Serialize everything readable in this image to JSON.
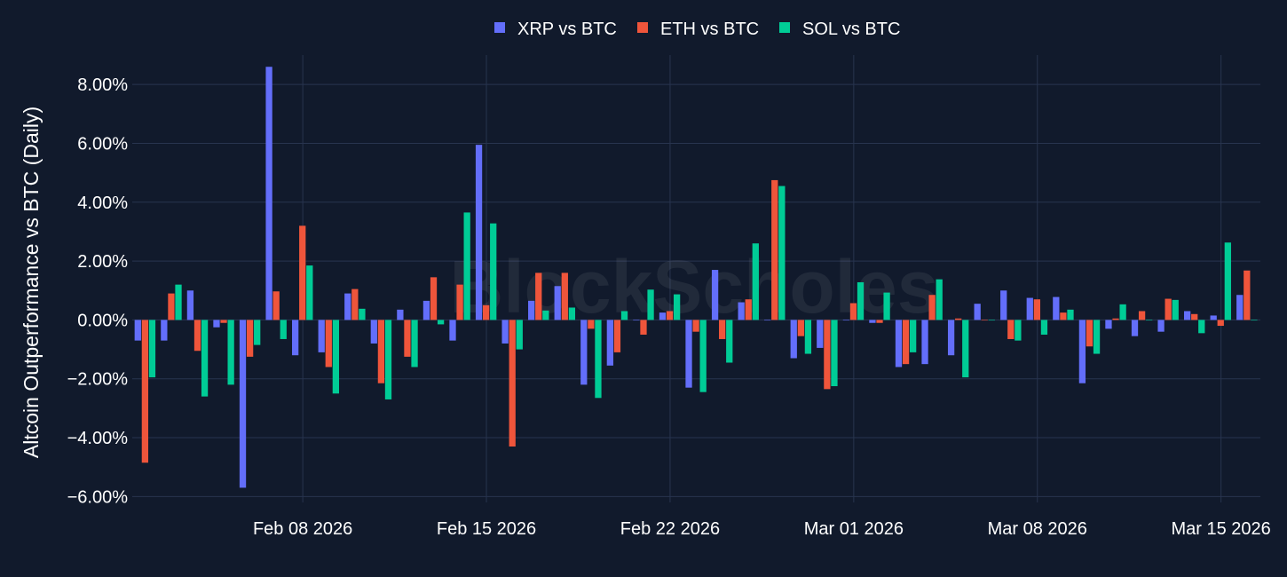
{
  "watermark": "BlockScholes",
  "chart_data": {
    "type": "bar",
    "ylabel": "Altcoin Outperformance vs BTC (Daily)",
    "ylim": [
      -6.2,
      9.0
    ],
    "yticks": [
      -6,
      -4,
      -2,
      0,
      2,
      4,
      6,
      8
    ],
    "ytick_labels": [
      "−6.00%",
      "−4.00%",
      "−2.00%",
      "0.00%",
      "2.00%",
      "4.00%",
      "6.00%",
      "8.00%"
    ],
    "x_start": "2026-02-02",
    "x_end": "2026-03-16",
    "xticks": [
      "2026-02-08",
      "2026-02-15",
      "2026-02-22",
      "2026-03-01",
      "2026-03-08",
      "2026-03-15"
    ],
    "xtick_labels": [
      "Feb 08 2026",
      "Feb 15 2026",
      "Feb 22 2026",
      "Mar 01 2026",
      "Mar 08 2026",
      "Mar 15 2026"
    ],
    "legend_position": "top-center",
    "grid": true,
    "dates": [
      "2026-02-02",
      "2026-02-03",
      "2026-02-04",
      "2026-02-05",
      "2026-02-06",
      "2026-02-07",
      "2026-02-08",
      "2026-02-09",
      "2026-02-10",
      "2026-02-11",
      "2026-02-12",
      "2026-02-13",
      "2026-02-14",
      "2026-02-15",
      "2026-02-16",
      "2026-02-17",
      "2026-02-18",
      "2026-02-19",
      "2026-02-20",
      "2026-02-21",
      "2026-02-22",
      "2026-02-23",
      "2026-02-24",
      "2026-02-25",
      "2026-02-26",
      "2026-02-27",
      "2026-02-28",
      "2026-03-01",
      "2026-03-02",
      "2026-03-03",
      "2026-03-04",
      "2026-03-05",
      "2026-03-06",
      "2026-03-07",
      "2026-03-08",
      "2026-03-09",
      "2026-03-10",
      "2026-03-11",
      "2026-03-12",
      "2026-03-13",
      "2026-03-14",
      "2026-03-15",
      "2026-03-16"
    ],
    "series": [
      {
        "name": "XRP vs BTC",
        "color": "#636efa",
        "values": [
          -0.7,
          -0.7,
          1.0,
          -0.25,
          -5.7,
          8.6,
          -1.2,
          -1.1,
          0.9,
          -0.8,
          0.35,
          0.65,
          -0.7,
          5.95,
          -0.8,
          0.65,
          1.15,
          -2.2,
          -1.55,
          0.0,
          0.25,
          -2.3,
          1.7,
          0.6,
          0.0,
          -1.3,
          -0.95,
          0.0,
          -0.1,
          -1.6,
          -1.5,
          -1.2,
          0.55,
          1.0,
          0.75,
          0.78,
          -2.15,
          -0.3,
          -0.55,
          -0.4,
          0.3,
          0.15,
          0.85
        ]
      },
      {
        "name": "ETH vs BTC",
        "color": "#ef553b",
        "values": [
          -4.85,
          0.9,
          -1.05,
          -0.1,
          -1.25,
          0.97,
          3.2,
          -1.6,
          1.05,
          -2.15,
          -1.25,
          1.45,
          1.2,
          0.5,
          -4.3,
          1.6,
          1.6,
          -0.3,
          -1.1,
          -0.5,
          0.3,
          -0.4,
          -0.65,
          0.7,
          4.75,
          -0.55,
          -2.35,
          0.57,
          -0.1,
          -1.5,
          0.85,
          0.05,
          0.0,
          -0.65,
          0.7,
          0.25,
          -0.9,
          0.05,
          0.3,
          0.72,
          0.2,
          -0.2,
          1.68
        ]
      },
      {
        "name": "SOL vs BTC",
        "color": "#00cc96",
        "values": [
          -1.95,
          1.2,
          -2.6,
          -2.2,
          -0.85,
          -0.65,
          1.85,
          -2.5,
          0.38,
          -2.7,
          -1.6,
          -0.15,
          3.65,
          3.28,
          -1.0,
          0.32,
          0.42,
          -2.65,
          0.3,
          1.03,
          0.87,
          -2.45,
          -1.45,
          2.6,
          4.55,
          -1.15,
          -2.25,
          1.28,
          0.93,
          -1.1,
          1.38,
          -1.95,
          0.0,
          -0.7,
          -0.5,
          0.35,
          -1.15,
          0.53,
          0.0,
          0.68,
          -0.45,
          2.63,
          0.0
        ]
      }
    ]
  }
}
